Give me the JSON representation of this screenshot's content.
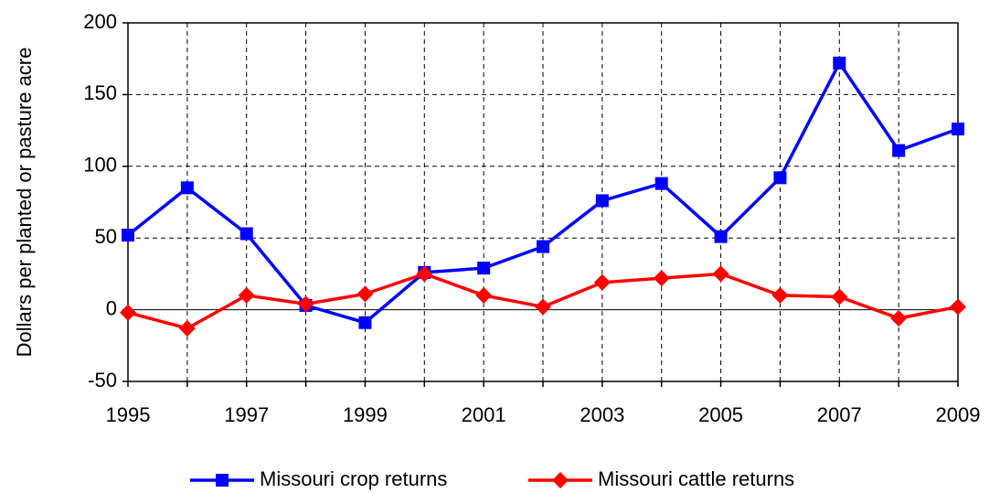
{
  "chart_data": {
    "type": "line",
    "y_label": "Dollars per planted or pasture acre",
    "x": [
      1995,
      1996,
      1997,
      1998,
      1999,
      2000,
      2001,
      2002,
      2003,
      2004,
      2005,
      2006,
      2007,
      2008,
      2009
    ],
    "series": [
      {
        "name": "Missouri crop returns",
        "color": "#0000ff",
        "marker": "square",
        "values": [
          52,
          85,
          53,
          3,
          -9,
          26,
          29,
          44,
          76,
          88,
          51,
          92,
          172,
          111,
          126
        ]
      },
      {
        "name": "Missouri cattle returns",
        "color": "#ff0000",
        "marker": "diamond",
        "values": [
          -2,
          -13,
          10,
          4,
          11,
          25,
          10,
          2,
          19,
          22,
          25,
          10,
          9,
          -6,
          2
        ]
      }
    ],
    "xlim": [
      1995,
      2009
    ],
    "xticks": [
      1995,
      1997,
      1999,
      2001,
      2003,
      2005,
      2007,
      2009
    ],
    "ylim": [
      -50,
      200
    ],
    "yticks": [
      -50,
      0,
      50,
      100,
      150,
      200
    ],
    "grid": true,
    "legend": "bottom"
  }
}
